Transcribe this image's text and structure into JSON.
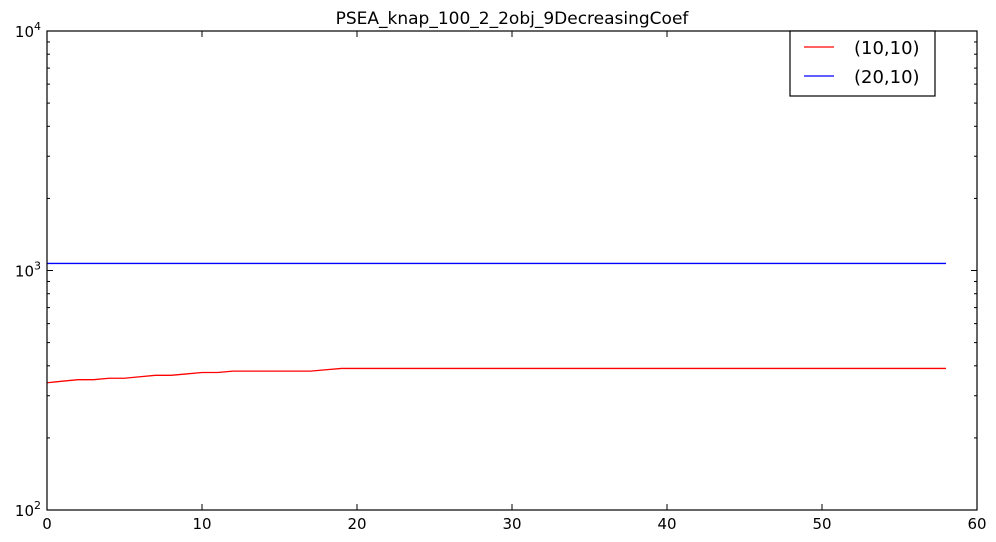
{
  "chart_data": {
    "type": "line",
    "title": "PSEA_knap_100_2_2obj_9DecreasingCoef",
    "xlabel": "",
    "ylabel": "",
    "xlim": [
      0,
      60
    ],
    "ylim": [
      100,
      10000
    ],
    "yscale": "log",
    "grid": false,
    "legend_position": "top-right",
    "x_ticks": [
      0,
      10,
      20,
      30,
      40,
      50,
      60
    ],
    "x_tick_labels": [
      "0",
      "10",
      "20",
      "30",
      "40",
      "50",
      "60"
    ],
    "y_ticks": [
      100,
      1000,
      10000
    ],
    "y_tick_labels": [
      {
        "base": "10",
        "exp": "2"
      },
      {
        "base": "10",
        "exp": "3"
      },
      {
        "base": "10",
        "exp": "4"
      }
    ],
    "series": [
      {
        "name": "(10,10)",
        "color": "#ff0000",
        "x": [
          0,
          1,
          2,
          3,
          4,
          5,
          6,
          7,
          8,
          9,
          10,
          11,
          12,
          13,
          14,
          15,
          16,
          17,
          18,
          19,
          20,
          25,
          30,
          35,
          40,
          45,
          50,
          55,
          58
        ],
        "y": [
          340,
          345,
          350,
          350,
          355,
          355,
          360,
          365,
          365,
          370,
          375,
          375,
          380,
          380,
          380,
          380,
          380,
          380,
          385,
          390,
          390,
          390,
          390,
          390,
          390,
          390,
          390,
          390,
          390
        ]
      },
      {
        "name": "(20,10)",
        "color": "#0000ff",
        "x": [
          0,
          58
        ],
        "y": [
          1070,
          1070
        ]
      }
    ]
  }
}
